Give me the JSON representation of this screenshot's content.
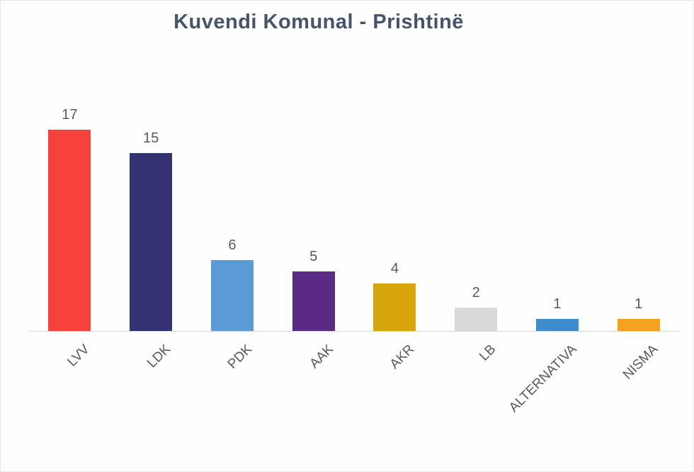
{
  "chart_data": {
    "type": "bar",
    "title": "Kuvendi Komunal - Prishtinë",
    "categories": [
      "LVV",
      "LDK",
      "PDK",
      "AAK",
      "AKR",
      "LB",
      "ALTERNATIVA",
      "NISMA"
    ],
    "values": [
      17,
      15,
      6,
      5,
      4,
      2,
      1,
      1
    ],
    "bar_colors": [
      "#F7413D",
      "#333371",
      "#5B9BD5",
      "#5B2A84",
      "#D7A60B",
      "#D9D9D9",
      "#3E8BCE",
      "#F3A11E"
    ],
    "data_labels_shown": true,
    "xlabel": "",
    "ylabel": "",
    "ylim": [
      0,
      17
    ],
    "grid": false,
    "legend": "none",
    "colors": {
      "title": "#44546A",
      "data_label": "#595959",
      "tick_label": "#595959",
      "axis_line": "#D9D9D9",
      "background": "#FEFEFE"
    }
  }
}
